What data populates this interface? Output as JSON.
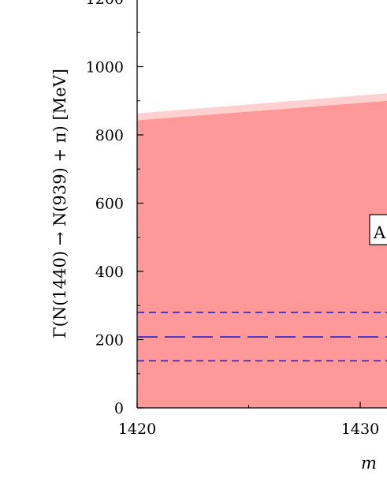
{
  "chart_data": {
    "type": "area",
    "xlabel": "m",
    "ylabel": "Γ(N(1440) → N(939) + π) [MeV]",
    "xlim": [
      1420,
      1431.2
    ],
    "ylim": [
      0,
      1200
    ],
    "x_ticks": [
      1420,
      1430
    ],
    "x_tick_labels": [
      "1420",
      "1430"
    ],
    "y_ticks": [
      0,
      200,
      400,
      600,
      800,
      1000,
      1200
    ],
    "y_tick_labels": [
      "0",
      "200",
      "400",
      "600",
      "800",
      "1000",
      "1200"
    ],
    "grid": false,
    "bands": [
      {
        "x": [
          1420,
          1431.2
        ],
        "lower": [
          0,
          0
        ],
        "upper": [
          843,
          900
        ],
        "color": "#ff9999"
      },
      {
        "x": [
          1420,
          1431.2
        ],
        "lower": [
          843,
          900
        ],
        "upper": [
          863,
          922
        ],
        "color": "#ffd0d0"
      }
    ],
    "lines": [
      {
        "y": 280,
        "style": "short-dash",
        "color": "#2222dd"
      },
      {
        "y": 208,
        "style": "long-dash",
        "color": "#2222dd"
      },
      {
        "y": 138,
        "style": "short-dash",
        "color": "#2222dd"
      }
    ],
    "annotation": {
      "text": "A",
      "x": 1430.9,
      "y": 520
    }
  }
}
